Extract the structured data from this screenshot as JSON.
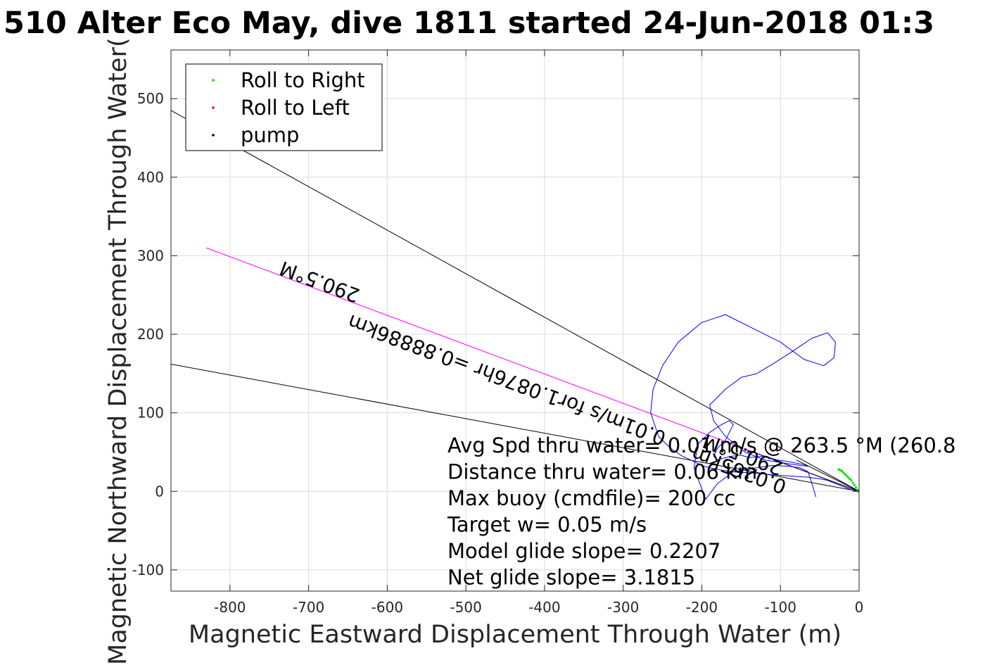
{
  "chart_data": {
    "type": "scatter",
    "title": "510 Alter Eco May, dive 1811 started 24-Jun-2018 01:3",
    "xlabel": "Magnetic Eastward Displacement Through Water (m)",
    "ylabel": "Magnetic Northward Displacement Through Water(",
    "xlim": [
      -875,
      0
    ],
    "ylim": [
      -127,
      562
    ],
    "x_ticks": [
      -800,
      -700,
      -600,
      -500,
      -400,
      -300,
      -200,
      -100,
      0
    ],
    "x_tick_labels": [
      "-800",
      "-700",
      "-600",
      "-500",
      "-400",
      "-300",
      "-200",
      "-100",
      "0"
    ],
    "y_ticks": [
      -100,
      0,
      100,
      200,
      300,
      400,
      500
    ],
    "y_tick_labels": [
      "-100",
      "0",
      "100",
      "200",
      "300",
      "400",
      "500"
    ],
    "grid": true,
    "legend_position": "top-left",
    "legend": [
      {
        "label": "Roll to Right",
        "color": "#00dd00"
      },
      {
        "label": "Roll to Left",
        "color": "#ff0000"
      },
      {
        "label": "pump",
        "color": "#000000"
      }
    ],
    "lines": [
      {
        "color": "#000000",
        "x": [
          0,
          -875
        ],
        "y": [
          0,
          485
        ]
      },
      {
        "color": "#000000",
        "x": [
          0,
          -875
        ],
        "y": [
          0,
          162
        ]
      },
      {
        "color": "#ff00ff",
        "x": [
          0,
          -830
        ],
        "y": [
          0,
          310
        ]
      },
      {
        "color": "#000000",
        "x": [
          0,
          -135
        ],
        "y": [
          0,
          50
        ]
      },
      {
        "color": "#000000",
        "x": [
          0,
          -80
        ],
        "y": [
          0,
          40
        ]
      }
    ],
    "track": {
      "color": "#0000ff",
      "x": [
        -55,
        -60,
        -65,
        -75,
        -90,
        -110,
        -130,
        -160,
        -180,
        -195,
        -210,
        -205,
        -190,
        -175,
        -165,
        -160,
        -165,
        -170,
        -180,
        -185,
        -180,
        -170,
        -160,
        -150,
        -140,
        -120,
        -105,
        -90,
        -80,
        -70,
        -65,
        -75,
        -95,
        -120,
        -145,
        -170,
        -185,
        -190,
        -170,
        -150,
        -130,
        -110,
        -85,
        -60,
        -40,
        -30,
        -32,
        -45,
        -70,
        -100,
        -130,
        -170,
        -200,
        -230,
        -250,
        -262,
        -265,
        -255,
        -240,
        -225,
        -210,
        -200,
        -190,
        -175,
        -160,
        -150,
        -140,
        -130,
        -120,
        -108,
        -95,
        -80,
        -65,
        -50,
        -40,
        -30,
        -20,
        -10,
        0
      ],
      "y": [
        -7,
        10,
        25,
        30,
        32,
        33,
        30,
        25,
        10,
        -10,
        30,
        60,
        75,
        85,
        90,
        85,
        75,
        65,
        55,
        45,
        40,
        43,
        45,
        46,
        43,
        45,
        40,
        38,
        36,
        34,
        32,
        33,
        36,
        40,
        50,
        70,
        90,
        110,
        130,
        145,
        150,
        162,
        178,
        195,
        202,
        190,
        170,
        160,
        168,
        190,
        205,
        225,
        215,
        190,
        160,
        130,
        100,
        70,
        55,
        45,
        38,
        33,
        30,
        27,
        25,
        24,
        24,
        23,
        22,
        21,
        20,
        19,
        18,
        16,
        14,
        10,
        6,
        2,
        0
      ]
    },
    "roll_right": {
      "color": "#00dd00",
      "x": [
        -1,
        -2,
        -4,
        -6,
        -8,
        -10,
        -12,
        -14,
        -16,
        -18,
        -20,
        -22,
        -24,
        -26
      ],
      "y": [
        0,
        2,
        5,
        8,
        11,
        14,
        16,
        18,
        20,
        22,
        24,
        26,
        27,
        28
      ]
    },
    "roll_left": {
      "color": "#ff0000",
      "x": [
        0
      ],
      "y": [
        0
      ]
    },
    "annotations": [
      {
        "text": "290.5°M",
        "x": -683,
        "y": 275,
        "angle": 200.5
      },
      {
        "text": "0.01m/s for1.0876hr =0.88886km",
        "x": -445,
        "y": 150,
        "angle": 200.5
      },
      {
        "text": "290.5°M",
        "x": -145,
        "y": 55,
        "angle": 200.5
      },
      {
        "text": "0.0265km",
        "x": -150,
        "y": 35,
        "angle": 200.5
      }
    ],
    "stats": [
      "Avg Spd thru water=  0.01 m/s @ 263.5 °M (260.8",
      "Distance thru water=  0.06 km",
      "Max buoy (cmdfile)= 200 cc",
      "Target w= 0.05 m/s",
      "Model glide slope= 0.2207",
      "Net glide slope= 3.1815"
    ]
  }
}
